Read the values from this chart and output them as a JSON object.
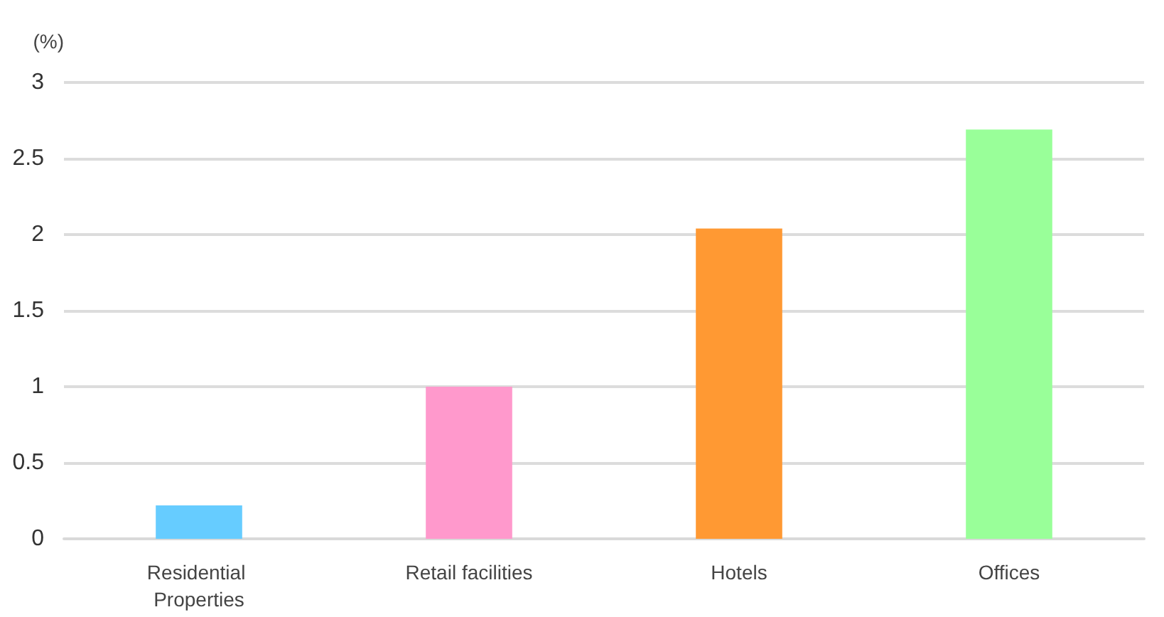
{
  "chart_data": {
    "type": "bar",
    "ylabel": "(%)",
    "categories": [
      "Residential Properties",
      "Retail facilities",
      "Hotels",
      "Offices"
    ],
    "values": [
      0.22,
      1.0,
      2.04,
      2.69
    ],
    "colors": [
      "#66ccff",
      "#ff99cc",
      "#ff9933",
      "#99ff99"
    ],
    "ylim": [
      0,
      3
    ],
    "yticks": [
      0,
      0.5,
      1,
      1.5,
      2,
      2.5,
      3
    ],
    "grid": "y"
  }
}
